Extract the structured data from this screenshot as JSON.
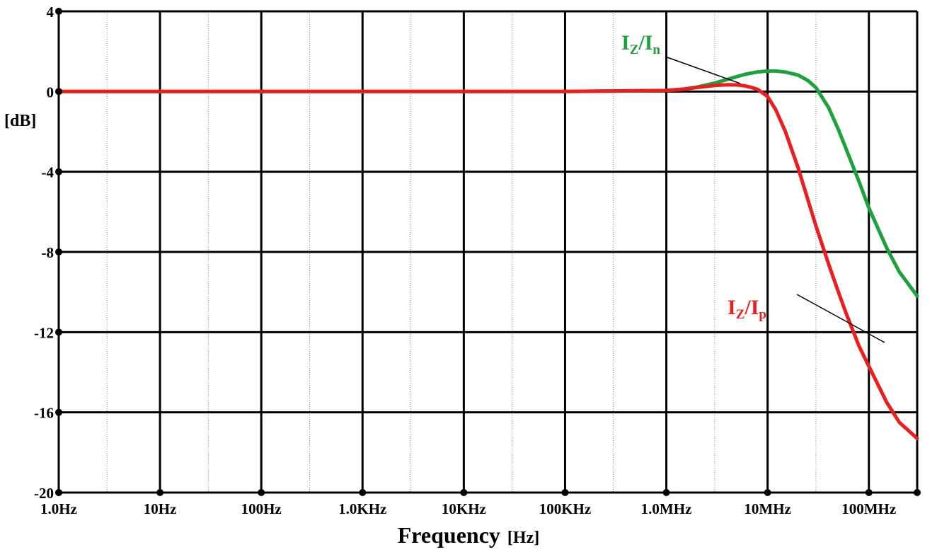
{
  "chart_data": {
    "type": "line",
    "xlabel": "Frequency",
    "xunit": "[Hz]",
    "ylabel": "[dB]",
    "x_scale": "log",
    "xlim": [
      1,
      300000000
    ],
    "ylim": [
      -20,
      4
    ],
    "x_ticks": [
      {
        "value": 1,
        "label": "1.0Hz"
      },
      {
        "value": 10,
        "label": "10Hz"
      },
      {
        "value": 100,
        "label": "100Hz"
      },
      {
        "value": 1000,
        "label": "1.0KHz"
      },
      {
        "value": 10000,
        "label": "10KHz"
      },
      {
        "value": 100000,
        "label": "100KHz"
      },
      {
        "value": 1000000,
        "label": "1.0MHz"
      },
      {
        "value": 10000000,
        "label": "10MHz"
      },
      {
        "value": 100000000,
        "label": "100MHz"
      }
    ],
    "y_ticks": [
      {
        "value": 4,
        "label": "4"
      },
      {
        "value": 0,
        "label": "0"
      },
      {
        "value": -4,
        "label": "-4"
      },
      {
        "value": -8,
        "label": "-8"
      },
      {
        "value": -12,
        "label": "-12"
      },
      {
        "value": -16,
        "label": "-16"
      },
      {
        "value": -20,
        "label": "-20"
      }
    ],
    "grid": true,
    "series": [
      {
        "name_main": "I",
        "name_sub1": "Z",
        "name_mid": "/I",
        "name_sub2": "n",
        "color": "#1aa33a",
        "x": [
          1,
          10,
          100,
          1000,
          10000,
          100000,
          1000000,
          1500000,
          2000000,
          3000000,
          4000000,
          5000000,
          6000000,
          8000000,
          10000000,
          12000000,
          15000000,
          20000000,
          25000000,
          30000000,
          40000000,
          50000000,
          60000000,
          80000000,
          100000000,
          150000000,
          200000000,
          300000000
        ],
        "y": [
          0,
          0,
          0,
          0,
          0,
          0,
          0.05,
          0.12,
          0.22,
          0.42,
          0.6,
          0.75,
          0.86,
          0.98,
          1.02,
          1.02,
          0.97,
          0.82,
          0.55,
          0.2,
          -0.8,
          -1.9,
          -2.9,
          -4.5,
          -5.8,
          -7.8,
          -9.0,
          -10.2
        ]
      },
      {
        "name_main": "I",
        "name_sub1": "Z",
        "name_mid": "/I",
        "name_sub2": "p",
        "color": "#ee1c1c",
        "x": [
          1,
          10,
          100,
          1000,
          10000,
          100000,
          1000000,
          1500000,
          2000000,
          3000000,
          4000000,
          5000000,
          6000000,
          7000000,
          8000000,
          10000000,
          12000000,
          15000000,
          20000000,
          25000000,
          30000000,
          40000000,
          50000000,
          60000000,
          80000000,
          100000000,
          150000000,
          200000000,
          300000000
        ],
        "y": [
          0,
          0,
          0,
          0,
          0,
          0,
          0.05,
          0.12,
          0.2,
          0.3,
          0.34,
          0.33,
          0.28,
          0.2,
          0.1,
          -0.25,
          -0.9,
          -2.0,
          -3.8,
          -5.4,
          -6.7,
          -8.6,
          -10.0,
          -11.1,
          -12.7,
          -13.7,
          -15.5,
          -16.5,
          -17.3
        ]
      }
    ]
  }
}
